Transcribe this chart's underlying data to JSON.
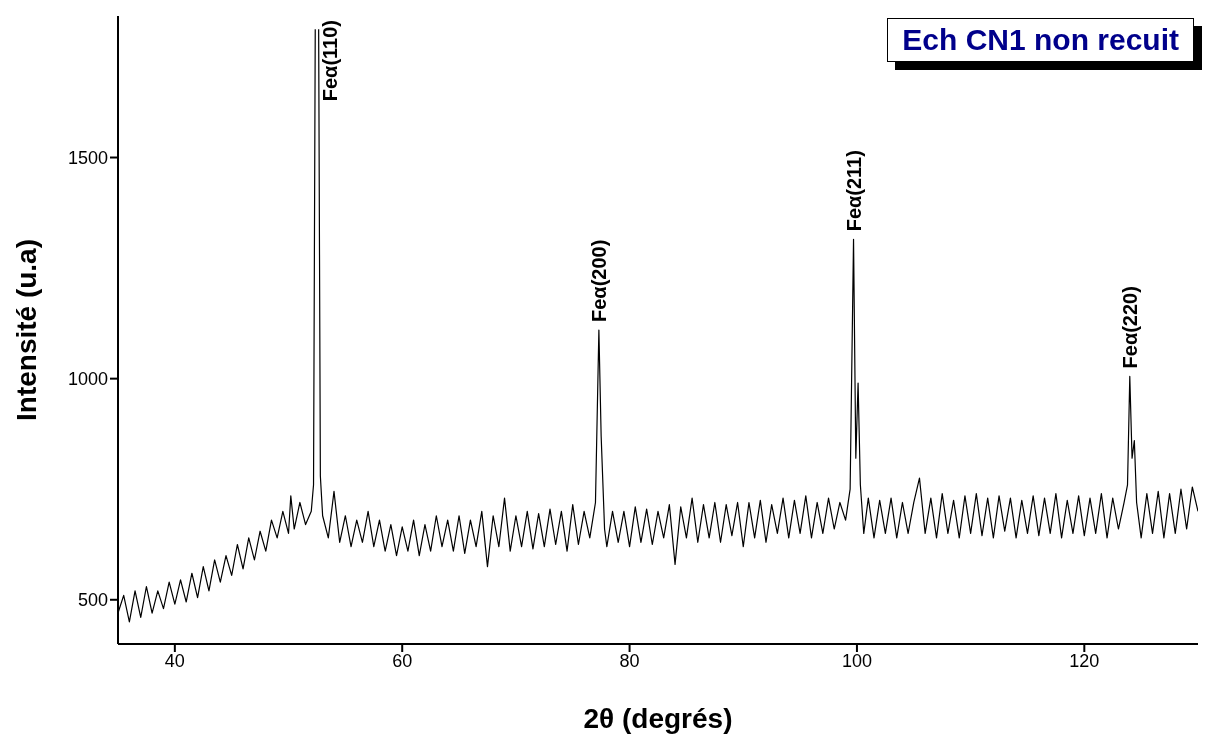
{
  "chart_data": {
    "type": "line",
    "title": "Ech CN1 non recuit",
    "xlabel": "2θ (degrés)",
    "ylabel": "Intensité (u.a)",
    "xlim": [
      35,
      130
    ],
    "ylim": [
      400,
      1820
    ],
    "xticks": [
      40,
      60,
      80,
      100,
      120
    ],
    "yticks": [
      500,
      1000,
      1500
    ],
    "grid": false,
    "legend": false,
    "marker": "none",
    "series": [
      {
        "color": "#000000",
        "x": [
          35,
          35.5,
          36,
          36.5,
          37,
          37.5,
          38,
          38.5,
          39,
          39.5,
          40,
          40.5,
          41,
          41.5,
          42,
          42.5,
          43,
          43.5,
          44,
          44.5,
          45,
          45.5,
          46,
          46.5,
          47,
          47.5,
          48,
          48.5,
          49,
          49.5,
          50,
          50.2,
          50.5,
          51,
          51.5,
          52,
          52.2,
          52.35,
          52.5,
          52.65,
          52.8,
          53,
          53.5,
          54,
          54.5,
          55,
          55.5,
          56,
          56.5,
          57,
          57.5,
          58,
          58.5,
          59,
          59.5,
          60,
          60.5,
          61,
          61.5,
          62,
          62.5,
          63,
          63.5,
          64,
          64.5,
          65,
          65.5,
          66,
          66.5,
          67,
          67.5,
          68,
          68.5,
          69,
          69.5,
          70,
          70.5,
          71,
          71.5,
          72,
          72.5,
          73,
          73.5,
          74,
          74.5,
          75,
          75.5,
          76,
          76.5,
          77,
          77.3,
          77.5,
          77.8,
          78,
          78.5,
          79,
          79.5,
          80,
          80.5,
          81,
          81.5,
          82,
          82.5,
          83,
          83.5,
          84,
          84.5,
          85,
          85.5,
          86,
          86.5,
          87,
          87.5,
          88,
          88.5,
          89,
          89.5,
          90,
          90.5,
          91,
          91.5,
          92,
          92.5,
          93,
          93.5,
          94,
          94.5,
          95,
          95.5,
          96,
          96.5,
          97,
          97.5,
          98,
          98.5,
          99,
          99.4,
          99.7,
          99.9,
          100.1,
          100.3,
          100.6,
          101,
          101.5,
          102,
          102.5,
          103,
          103.5,
          104,
          104.5,
          105,
          105.5,
          106,
          106.5,
          107,
          107.5,
          108,
          108.5,
          109,
          109.5,
          110,
          110.5,
          111,
          111.5,
          112,
          112.5,
          113,
          113.5,
          114,
          114.5,
          115,
          115.5,
          116,
          116.5,
          117,
          117.5,
          118,
          118.5,
          119,
          119.5,
          120,
          120.5,
          121,
          121.5,
          122,
          122.5,
          123,
          123.5,
          123.8,
          124,
          124.2,
          124.4,
          124.6,
          125,
          125.5,
          126,
          126.5,
          127,
          127.5,
          128,
          128.5,
          129,
          129.5,
          130
        ],
        "values": [
          470,
          510,
          450,
          520,
          460,
          530,
          470,
          520,
          480,
          540,
          490,
          545,
          495,
          560,
          505,
          575,
          520,
          590,
          540,
          600,
          555,
          625,
          570,
          640,
          590,
          655,
          610,
          680,
          640,
          700,
          650,
          735,
          660,
          720,
          670,
          700,
          760,
          1790,
          null,
          1790,
          780,
          690,
          640,
          745,
          630,
          690,
          620,
          680,
          630,
          700,
          620,
          680,
          610,
          670,
          600,
          665,
          610,
          680,
          600,
          670,
          610,
          690,
          620,
          680,
          610,
          690,
          605,
          680,
          620,
          700,
          575,
          690,
          620,
          730,
          610,
          690,
          620,
          700,
          615,
          695,
          620,
          705,
          625,
          700,
          610,
          715,
          625,
          700,
          640,
          720,
          1110,
          870,
          660,
          620,
          700,
          630,
          700,
          620,
          710,
          630,
          705,
          625,
          700,
          640,
          715,
          580,
          710,
          640,
          730,
          630,
          715,
          640,
          720,
          630,
          715,
          645,
          720,
          620,
          720,
          640,
          725,
          630,
          715,
          650,
          730,
          640,
          725,
          650,
          735,
          640,
          720,
          650,
          730,
          660,
          720,
          680,
          750,
          1315,
          820,
          990,
          760,
          650,
          730,
          640,
          725,
          650,
          730,
          640,
          720,
          650,
          720,
          775,
          650,
          730,
          640,
          740,
          650,
          725,
          640,
          735,
          650,
          740,
          645,
          730,
          640,
          735,
          655,
          730,
          640,
          725,
          650,
          735,
          645,
          730,
          650,
          740,
          640,
          725,
          650,
          735,
          645,
          730,
          650,
          740,
          640,
          730,
          660,
          720,
          760,
          1005,
          820,
          860,
          720,
          640,
          740,
          650,
          745,
          640,
          740,
          650,
          750,
          660,
          755,
          700
        ]
      }
    ],
    "annotations": [
      {
        "text": "Feα(110)",
        "x": 52.5
      },
      {
        "text": "Feα(200)",
        "x": 77.3,
        "y": 1110
      },
      {
        "text": "Feα(211)",
        "x": 99.7,
        "y": 1315
      },
      {
        "text": "Feα(220)",
        "x": 124,
        "y": 1005
      }
    ]
  }
}
